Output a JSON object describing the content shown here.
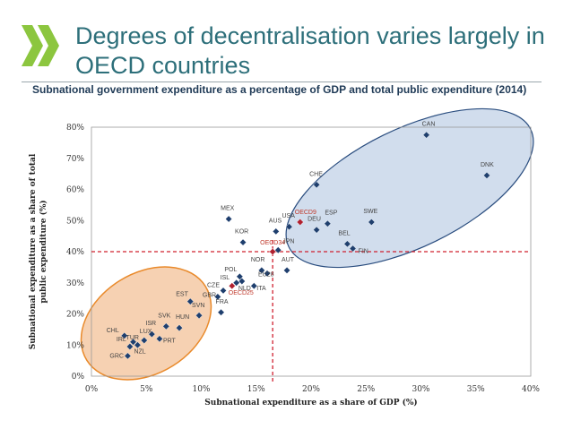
{
  "header": {
    "title": "Degrees of decentralisation varies largely in OECD countries",
    "subtitle": "Subnational government expenditure as a percentage of GDP and total public expenditure (2014)"
  },
  "colors": {
    "title": "#2d6f7a",
    "logo": "#8cc63f",
    "point": "#1f3f6e",
    "highlight": "#b0202f",
    "blue_ellipse": "#c9d7ea",
    "orange_ellipse": "#f4c9a5",
    "orange_stroke": "#e98a2b",
    "ref_line": "#d0202f"
  },
  "chart_data": {
    "type": "scatter",
    "xlabel": "Subnational  expenditure as a share of GDP (%)",
    "ylabel": "Subnational expenditure as a share of total public expenditure (%)",
    "xlim": [
      0,
      40
    ],
    "ylim": [
      0,
      80
    ],
    "x_ticks": [
      "0%",
      "5%",
      "10%",
      "15%",
      "20%",
      "25%",
      "30%",
      "35%",
      "40%"
    ],
    "y_ticks": [
      "0%",
      "10%",
      "20%",
      "30%",
      "40%",
      "50%",
      "60%",
      "70%",
      "80%"
    ],
    "grid": false,
    "reference_lines": {
      "x": 16.5,
      "y": 40
    },
    "points": [
      {
        "label": "CAN",
        "x": 30.5,
        "y": 77.5
      },
      {
        "label": "DNK",
        "x": 36.0,
        "y": 64.5
      },
      {
        "label": "CHE",
        "x": 20.5,
        "y": 61.5
      },
      {
        "label": "MEX",
        "x": 12.5,
        "y": 50.5
      },
      {
        "label": "OECD9",
        "x": 19.0,
        "y": 49.5,
        "highlight": true
      },
      {
        "label": "USA",
        "x": 18.0,
        "y": 48.0
      },
      {
        "label": "ESP",
        "x": 21.5,
        "y": 49.0
      },
      {
        "label": "SWE",
        "x": 25.5,
        "y": 49.5
      },
      {
        "label": "DEU",
        "x": 20.5,
        "y": 47.0
      },
      {
        "label": "AUS",
        "x": 16.8,
        "y": 46.5
      },
      {
        "label": "KOR",
        "x": 13.8,
        "y": 43.0
      },
      {
        "label": "OECD34",
        "x": 16.5,
        "y": 40.0,
        "highlight": true
      },
      {
        "label": "JPN",
        "x": 17.0,
        "y": 40.5
      },
      {
        "label": "BEL",
        "x": 23.3,
        "y": 42.5
      },
      {
        "label": "FIN",
        "x": 23.8,
        "y": 41.0
      },
      {
        "label": "NOR",
        "x": 15.5,
        "y": 34.0
      },
      {
        "label": "AUT",
        "x": 17.8,
        "y": 34.0
      },
      {
        "label": "EU28",
        "x": 16.0,
        "y": 33.0
      },
      {
        "label": "POL",
        "x": 13.5,
        "y": 32.0
      },
      {
        "label": "ISL",
        "x": 13.2,
        "y": 30.0
      },
      {
        "label": "CZE",
        "x": 12.0,
        "y": 27.5
      },
      {
        "label": "NLD",
        "x": 13.7,
        "y": 30.5
      },
      {
        "label": "ITA",
        "x": 14.8,
        "y": 29.0
      },
      {
        "label": "GBR",
        "x": 11.5,
        "y": 25.5
      },
      {
        "label": "OECD25",
        "x": 12.8,
        "y": 29.0,
        "highlight": true
      },
      {
        "label": "EST",
        "x": 9.0,
        "y": 24.0
      },
      {
        "label": "FRA",
        "x": 11.8,
        "y": 20.5
      },
      {
        "label": "SVN",
        "x": 9.8,
        "y": 19.5
      },
      {
        "label": "SVK",
        "x": 6.8,
        "y": 16.0
      },
      {
        "label": "HUN",
        "x": 8.0,
        "y": 15.5
      },
      {
        "label": "ISR",
        "x": 5.5,
        "y": 13.5
      },
      {
        "label": "CHL",
        "x": 3.0,
        "y": 13.0
      },
      {
        "label": "TUR",
        "x": 3.8,
        "y": 11.0
      },
      {
        "label": "LUX",
        "x": 4.8,
        "y": 11.5
      },
      {
        "label": "PRT",
        "x": 6.2,
        "y": 12.0
      },
      {
        "label": "IRL",
        "x": 3.5,
        "y": 9.5
      },
      {
        "label": "NZL",
        "x": 4.2,
        "y": 10.0
      },
      {
        "label": "GRC",
        "x": 3.3,
        "y": 6.5
      }
    ]
  }
}
